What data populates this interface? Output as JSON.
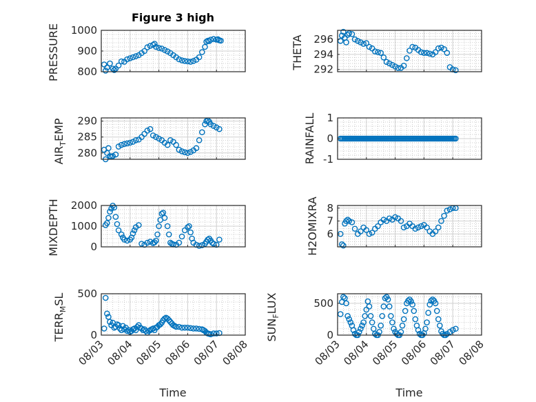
{
  "figure_title": "Figure 3 high",
  "colors": {
    "marker": "#0072BD",
    "axis": "#262626",
    "grid": "#d0d0d0",
    "minor_grid": "#b8b8b8",
    "background": "#ffffff"
  },
  "chart_data": [
    {
      "type": "scatter",
      "title": "Figure 3 high",
      "ylabel": "PRESSURE",
      "xlabel": "",
      "ylim": [
        800,
        1000
      ],
      "yticks": [
        800,
        900,
        1000
      ],
      "xlim": [
        3.0,
        8.0
      ],
      "xticks": [],
      "x_unit": "day of August",
      "grid": "major+minor",
      "marker": "open circle",
      "x": [
        3.1,
        3.15,
        3.2,
        3.3,
        3.4,
        3.45,
        3.5,
        3.6,
        3.7,
        3.8,
        3.9,
        4.0,
        4.1,
        4.2,
        4.3,
        4.4,
        4.5,
        4.6,
        4.7,
        4.8,
        4.85,
        4.9,
        5.0,
        5.1,
        5.2,
        5.3,
        5.4,
        5.5,
        5.6,
        5.7,
        5.8,
        5.9,
        6.0,
        6.1,
        6.2,
        6.3,
        6.4,
        6.5,
        6.6,
        6.65,
        6.7,
        6.75,
        6.8,
        6.9,
        7.0,
        7.05,
        7.1,
        7.15
      ],
      "y": [
        835,
        805,
        820,
        840,
        815,
        808,
        815,
        830,
        850,
        848,
        860,
        865,
        870,
        875,
        880,
        890,
        900,
        918,
        925,
        930,
        935,
        920,
        915,
        912,
        905,
        898,
        890,
        880,
        870,
        860,
        855,
        852,
        850,
        848,
        852,
        858,
        870,
        895,
        920,
        945,
        950,
        948,
        955,
        958,
        955,
        957,
        952,
        950
      ]
    },
    {
      "type": "scatter",
      "title": "",
      "ylabel": "THETA",
      "xlabel": "",
      "ylim": [
        291.7,
        297.2
      ],
      "yticks": [
        292,
        294,
        296
      ],
      "xlim": [
        3.0,
        8.0
      ],
      "xticks": [],
      "x_unit": "day of August",
      "grid": "major+minor",
      "marker": "open circle",
      "x": [
        3.1,
        3.15,
        3.2,
        3.25,
        3.3,
        3.35,
        3.4,
        3.5,
        3.6,
        3.7,
        3.8,
        3.9,
        4.0,
        4.1,
        4.2,
        4.3,
        4.4,
        4.5,
        4.6,
        4.7,
        4.8,
        4.9,
        5.0,
        5.1,
        5.2,
        5.3,
        5.4,
        5.5,
        5.6,
        5.7,
        5.8,
        5.9,
        6.0,
        6.1,
        6.2,
        6.3,
        6.4,
        6.5,
        6.6,
        6.7,
        6.8,
        6.9,
        7.0,
        7.1
      ],
      "y": [
        295.8,
        296.5,
        297.0,
        296.2,
        295.6,
        296.6,
        296.8,
        296.7,
        296.0,
        295.8,
        295.6,
        295.4,
        295.5,
        295.0,
        294.8,
        294.4,
        294.3,
        294.2,
        293.6,
        293.0,
        292.8,
        292.6,
        292.4,
        292.2,
        292.2,
        292.5,
        293.5,
        294.5,
        295.0,
        294.9,
        294.6,
        294.3,
        294.2,
        294.2,
        294.1,
        294.0,
        294.3,
        294.8,
        294.9,
        294.7,
        294.2,
        292.3,
        292.0,
        291.9
      ]
    },
    {
      "type": "scatter",
      "title": "",
      "ylabel": "AIR_TEMP",
      "xlabel": "",
      "ylim": [
        278,
        291
      ],
      "yticks": [
        280,
        285,
        290
      ],
      "xlim": [
        3.0,
        8.0
      ],
      "xticks": [],
      "x_unit": "day of August",
      "grid": "major+minor",
      "marker": "open circle",
      "x": [
        3.1,
        3.15,
        3.2,
        3.25,
        3.3,
        3.35,
        3.4,
        3.5,
        3.6,
        3.7,
        3.8,
        3.9,
        4.0,
        4.1,
        4.2,
        4.3,
        4.4,
        4.5,
        4.6,
        4.7,
        4.8,
        4.9,
        5.0,
        5.1,
        5.2,
        5.3,
        5.4,
        5.5,
        5.6,
        5.7,
        5.8,
        5.9,
        6.0,
        6.1,
        6.2,
        6.3,
        6.4,
        6.5,
        6.6,
        6.65,
        6.7,
        6.75,
        6.8,
        6.9,
        7.0,
        7.1
      ],
      "y": [
        281,
        278,
        280,
        281.5,
        279,
        278.8,
        279,
        279.5,
        282,
        282.5,
        282.8,
        283,
        283.2,
        283.5,
        284,
        284.2,
        285,
        286,
        287,
        287.5,
        285.5,
        285,
        284.5,
        284,
        283.2,
        282.5,
        284,
        283.5,
        282.5,
        281,
        280.5,
        280.2,
        280,
        280.3,
        280.8,
        281.5,
        284,
        286.5,
        289,
        290,
        290.2,
        289.8,
        289,
        288.5,
        288,
        287.5
      ]
    },
    {
      "type": "scatter",
      "title": "",
      "ylabel": "RAINFALL",
      "xlabel": "",
      "ylim": [
        -1,
        1
      ],
      "yticks": [
        -1,
        0,
        1
      ],
      "xlim": [
        3.0,
        8.0
      ],
      "xticks": [],
      "x_unit": "day of August",
      "grid": "major+minor",
      "marker": "open circle",
      "x_range": [
        3.1,
        7.1
      ],
      "constant_value": 0,
      "n_points": 85
    },
    {
      "type": "scatter",
      "title": "",
      "ylabel": "MIXDEPTH",
      "xlabel": "",
      "ylim": [
        0,
        2000
      ],
      "yticks": [
        0,
        1000,
        2000
      ],
      "xlim": [
        3.0,
        8.0
      ],
      "xticks": [],
      "x_unit": "day of August",
      "grid": "major+minor",
      "marker": "open circle",
      "x": [
        3.15,
        3.2,
        3.25,
        3.3,
        3.35,
        3.4,
        3.45,
        3.5,
        3.55,
        3.6,
        3.7,
        3.75,
        3.8,
        3.9,
        4.0,
        4.05,
        4.1,
        4.15,
        4.2,
        4.3,
        4.4,
        4.5,
        4.6,
        4.7,
        4.8,
        4.85,
        4.9,
        4.95,
        5.0,
        5.05,
        5.1,
        5.15,
        5.2,
        5.3,
        5.35,
        5.4,
        5.45,
        5.5,
        5.6,
        5.7,
        5.8,
        5.9,
        6.0,
        6.05,
        6.1,
        6.15,
        6.2,
        6.3,
        6.4,
        6.5,
        6.6,
        6.65,
        6.7,
        6.75,
        6.8,
        6.85,
        6.9,
        7.0,
        7.1
      ],
      "y": [
        1050,
        1150,
        1400,
        1700,
        1850,
        1990,
        1900,
        1450,
        1100,
        800,
        600,
        450,
        350,
        300,
        350,
        450,
        650,
        800,
        950,
        1050,
        150,
        100,
        200,
        250,
        180,
        220,
        300,
        600,
        1000,
        1300,
        1600,
        1650,
        1400,
        1000,
        600,
        200,
        150,
        120,
        100,
        200,
        500,
        800,
        950,
        1000,
        700,
        400,
        200,
        100,
        50,
        80,
        150,
        250,
        350,
        400,
        300,
        200,
        150,
        100,
        350
      ]
    },
    {
      "type": "scatter",
      "title": "",
      "ylabel": "H2OMIXRA",
      "xlabel": "",
      "ylim": [
        5,
        8.2
      ],
      "yticks": [
        6,
        7,
        8
      ],
      "xlim": [
        3.0,
        8.0
      ],
      "xticks": [],
      "x_unit": "day of August",
      "grid": "major+minor",
      "marker": "open circle",
      "x": [
        3.1,
        3.15,
        3.2,
        3.25,
        3.3,
        3.35,
        3.4,
        3.5,
        3.6,
        3.7,
        3.8,
        3.9,
        4.0,
        4.1,
        4.2,
        4.3,
        4.4,
        4.5,
        4.6,
        4.7,
        4.8,
        4.9,
        5.0,
        5.1,
        5.2,
        5.3,
        5.4,
        5.5,
        5.6,
        5.7,
        5.8,
        5.9,
        6.0,
        6.1,
        6.2,
        6.3,
        6.4,
        6.5,
        6.6,
        6.7,
        6.8,
        6.9,
        7.0,
        7.1
      ],
      "y": [
        6.0,
        5.2,
        5.1,
        6.8,
        7.0,
        7.1,
        7.0,
        6.9,
        6.4,
        6.0,
        6.2,
        6.5,
        6.3,
        6.0,
        6.1,
        6.4,
        6.6,
        6.9,
        7.1,
        7.0,
        7.2,
        7.1,
        7.3,
        7.2,
        7.0,
        6.5,
        6.6,
        6.8,
        6.6,
        6.4,
        6.5,
        6.6,
        6.7,
        6.5,
        6.2,
        6.0,
        6.2,
        6.5,
        7.0,
        7.4,
        7.8,
        7.9,
        8.0,
        8.0
      ]
    },
    {
      "type": "scatter",
      "title": "",
      "ylabel": "TERR_MSL",
      "xlabel": "Time",
      "ylim": [
        0,
        500
      ],
      "yticks": [
        0,
        500
      ],
      "xlim": [
        3.0,
        8.0
      ],
      "xticks": [
        3,
        4,
        5,
        6,
        7,
        8
      ],
      "xtick_labels": [
        "08/03",
        "08/04",
        "08/05",
        "08/06",
        "08/07",
        "08/08"
      ],
      "x_unit": "day of August",
      "grid": "major+minor",
      "marker": "open circle",
      "x": [
        3.1,
        3.15,
        3.2,
        3.25,
        3.3,
        3.35,
        3.4,
        3.45,
        3.5,
        3.55,
        3.6,
        3.65,
        3.7,
        3.75,
        3.8,
        3.85,
        3.9,
        3.95,
        4.0,
        4.05,
        4.1,
        4.15,
        4.2,
        4.25,
        4.3,
        4.35,
        4.4,
        4.45,
        4.5,
        4.55,
        4.6,
        4.65,
        4.7,
        4.75,
        4.8,
        4.85,
        4.9,
        4.95,
        5.0,
        5.05,
        5.1,
        5.15,
        5.2,
        5.25,
        5.3,
        5.35,
        5.4,
        5.45,
        5.5,
        5.55,
        5.6,
        5.7,
        5.8,
        5.9,
        6.0,
        6.1,
        6.2,
        6.3,
        6.4,
        6.5,
        6.55,
        6.6,
        6.65,
        6.7,
        6.75,
        6.8,
        6.9,
        7.0,
        7.1
      ],
      "y": [
        80,
        450,
        260,
        220,
        160,
        120,
        150,
        90,
        100,
        130,
        120,
        80,
        60,
        110,
        70,
        90,
        50,
        60,
        40,
        50,
        70,
        80,
        60,
        100,
        120,
        90,
        80,
        60,
        70,
        50,
        30,
        50,
        60,
        70,
        80,
        60,
        90,
        100,
        120,
        130,
        150,
        180,
        200,
        210,
        200,
        180,
        160,
        140,
        120,
        110,
        100,
        100,
        90,
        90,
        90,
        85,
        80,
        80,
        75,
        70,
        60,
        50,
        30,
        20,
        15,
        10,
        20,
        20,
        25
      ]
    },
    {
      "type": "scatter",
      "title": "",
      "ylabel": "SUN_FLUX",
      "xlabel": "Time",
      "ylim": [
        0,
        650
      ],
      "yticks": [
        0,
        500
      ],
      "xlim": [
        3.0,
        8.0
      ],
      "xticks": [
        3,
        4,
        5,
        6,
        7,
        8
      ],
      "xtick_labels": [
        "08/03",
        "08/04",
        "08/05",
        "08/06",
        "08/07",
        "08/08"
      ],
      "x_unit": "day of August",
      "grid": "major+minor",
      "marker": "open circle",
      "x": [
        3.1,
        3.15,
        3.2,
        3.25,
        3.3,
        3.35,
        3.4,
        3.45,
        3.5,
        3.55,
        3.6,
        3.65,
        3.7,
        3.75,
        3.8,
        3.85,
        3.9,
        3.95,
        4.0,
        4.05,
        4.1,
        4.15,
        4.2,
        4.25,
        4.3,
        4.35,
        4.4,
        4.45,
        4.5,
        4.55,
        4.6,
        4.65,
        4.7,
        4.75,
        4.8,
        4.85,
        4.9,
        4.95,
        5.0,
        5.05,
        5.1,
        5.15,
        5.2,
        5.25,
        5.3,
        5.35,
        5.4,
        5.45,
        5.5,
        5.55,
        5.6,
        5.65,
        5.7,
        5.75,
        5.8,
        5.85,
        5.9,
        5.95,
        6.0,
        6.05,
        6.1,
        6.15,
        6.2,
        6.25,
        6.3,
        6.35,
        6.4,
        6.45,
        6.5,
        6.55,
        6.6,
        6.65,
        6.7,
        6.75,
        6.8,
        6.9,
        7.0,
        7.1
      ],
      "y": [
        330,
        520,
        600,
        580,
        500,
        300,
        250,
        200,
        150,
        80,
        20,
        0,
        0,
        50,
        100,
        150,
        200,
        300,
        400,
        530,
        450,
        300,
        200,
        100,
        20,
        0,
        0,
        50,
        150,
        300,
        450,
        580,
        600,
        560,
        450,
        300,
        200,
        100,
        50,
        20,
        0,
        0,
        50,
        150,
        250,
        380,
        500,
        540,
        560,
        530,
        480,
        380,
        250,
        150,
        80,
        20,
        0,
        0,
        30,
        100,
        200,
        350,
        480,
        540,
        560,
        540,
        500,
        380,
        250,
        150,
        60,
        20,
        0,
        0,
        20,
        50,
        80,
        100
      ]
    }
  ]
}
